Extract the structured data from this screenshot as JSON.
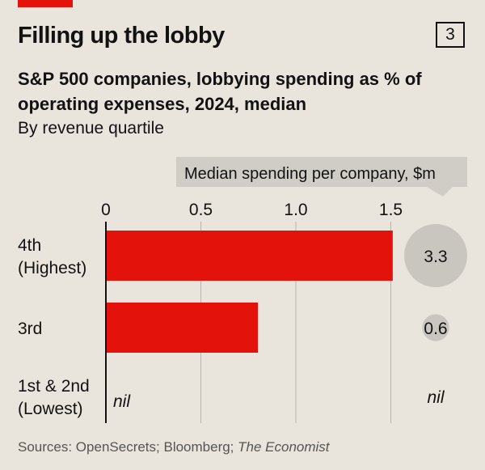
{
  "header": {
    "title": "Filling up the lobby",
    "chart_number": "3",
    "subtitle": "S&P 500 companies, lobbying spending as % of operating expenses, 2024, median",
    "subtitle2": "By revenue quartile"
  },
  "footer": {
    "source_prefix": "Sources: OpenSecrets; Bloomberg; ",
    "source_italic": "The Economist"
  },
  "colors": {
    "bar": "#e3120b",
    "bubble": "#c9c6c0",
    "background": "#e9e5dc"
  },
  "chart_data": {
    "type": "bar",
    "orientation": "horizontal",
    "categories": [
      [
        "4th",
        "(Highest)"
      ],
      [
        "3rd"
      ],
      [
        "1st & 2nd",
        "(Lowest)"
      ]
    ],
    "values": [
      1.51,
      0.8,
      0
    ],
    "value_labels": [
      "",
      "",
      "nil"
    ],
    "xlim": [
      0,
      1.5
    ],
    "xticks": [
      0,
      0.5,
      1.0,
      1.5
    ],
    "xtick_labels": [
      "0",
      "0.5",
      "1.0",
      "1.5"
    ],
    "grid": true,
    "secondary": {
      "title": "Median spending per company, $m",
      "type": "bubble",
      "values": [
        3.3,
        0.6,
        0
      ],
      "labels": [
        "3.3",
        "0.6",
        "nil"
      ]
    }
  }
}
